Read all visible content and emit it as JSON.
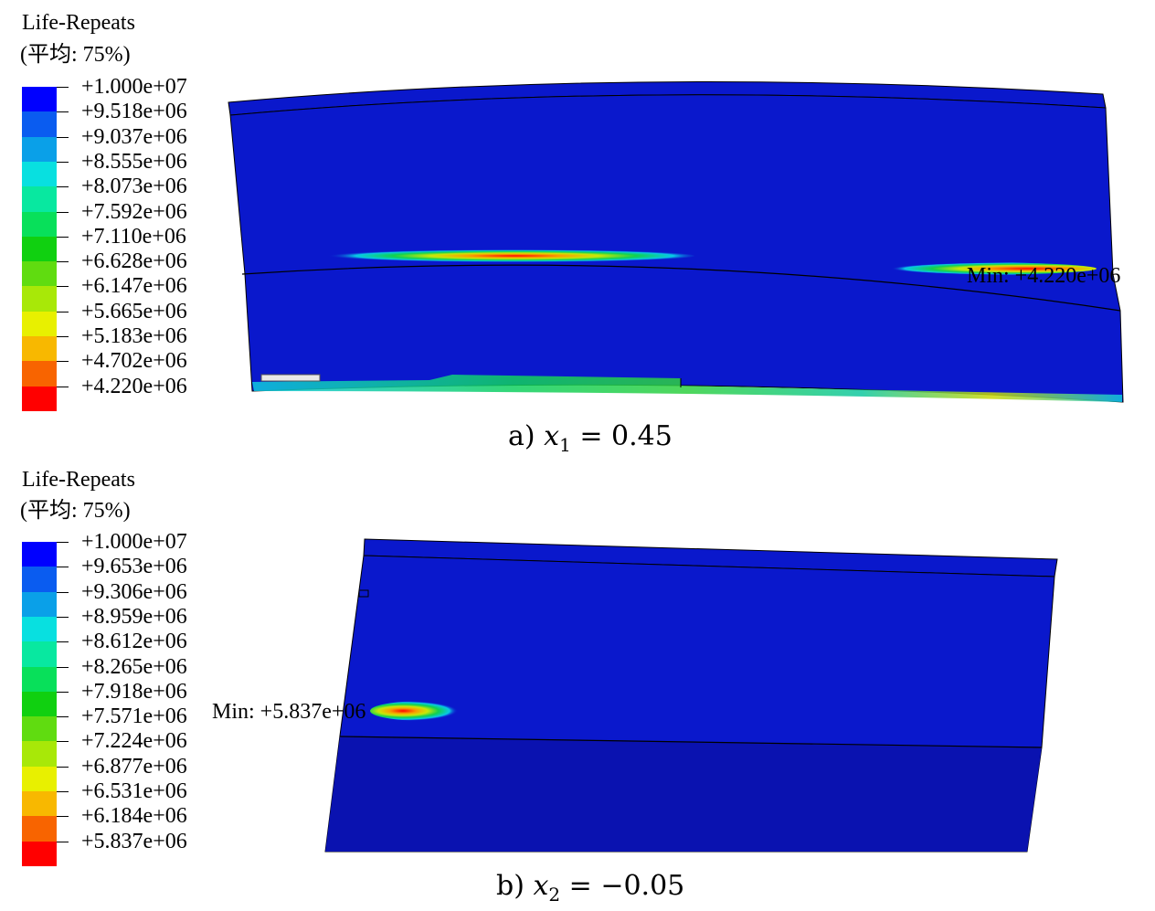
{
  "panel_a": {
    "legend": {
      "title": "Life-Repeats",
      "subtitle": "(平均: 75%)",
      "values": [
        "+1.000e+07",
        "+9.518e+06",
        "+9.037e+06",
        "+8.555e+06",
        "+8.073e+06",
        "+7.592e+06",
        "+7.110e+06",
        "+6.628e+06",
        "+6.147e+06",
        "+5.665e+06",
        "+5.183e+06",
        "+4.702e+06",
        "+4.220e+06"
      ]
    },
    "min_label": "Min: +4.220e+06",
    "caption": {
      "prefix": "a)",
      "var": "x",
      "sub": "1",
      "rest": " = 0.45"
    }
  },
  "panel_b": {
    "legend": {
      "title": "Life-Repeats",
      "subtitle": "(平均: 75%)",
      "values": [
        "+1.000e+07",
        "+9.653e+06",
        "+9.306e+06",
        "+8.959e+06",
        "+8.612e+06",
        "+8.265e+06",
        "+7.918e+06",
        "+7.571e+06",
        "+7.224e+06",
        "+6.877e+06",
        "+6.531e+06",
        "+6.184e+06",
        "+5.837e+06"
      ]
    },
    "min_label": "Min: +5.837e+06",
    "caption": {
      "prefix": "b)",
      "var": "x",
      "sub": "2",
      "rest": " = −0.05"
    }
  },
  "colors": {
    "scale": [
      "#0000ff",
      "#0a5cf0",
      "#0aa0e8",
      "#08e0e0",
      "#08e8a0",
      "#08e05a",
      "#10d010",
      "#60dc10",
      "#a8e808",
      "#e8f000",
      "#f8b800",
      "#f86400",
      "#ff0000"
    ],
    "part": "#0a18cc",
    "part_lower": "#0a12b0"
  }
}
